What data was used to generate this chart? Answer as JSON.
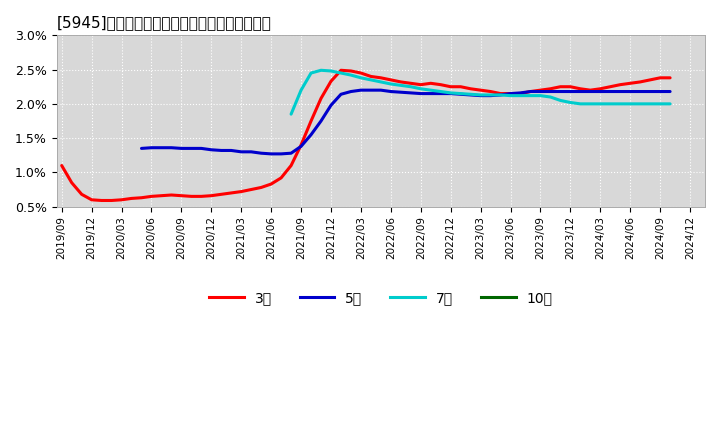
{
  "title": "[5945]　当期純利益マージンの標準偏差の推移",
  "ylim": [
    0.005,
    0.03
  ],
  "yticks": [
    0.005,
    0.01,
    0.015,
    0.02,
    0.025,
    0.03
  ],
  "ytick_labels": [
    "0.5%",
    "1.0%",
    "1.5%",
    "2.0%",
    "2.5%",
    "3.0%"
  ],
  "background_color": "#ffffff",
  "plot_bg_color": "#d8d8d8",
  "grid_color": "#ffffff",
  "series": {
    "3year": {
      "color": "#ff0000",
      "label": "3年",
      "x": [
        0,
        1,
        2,
        3,
        4,
        5,
        6,
        7,
        8,
        9,
        10,
        11,
        12,
        13,
        14,
        15,
        16,
        17,
        18,
        19,
        20,
        21,
        22,
        23,
        24,
        25,
        26,
        27,
        28,
        29,
        30,
        31,
        32,
        33,
        34,
        35,
        36,
        37,
        38,
        39,
        40,
        41,
        42,
        43,
        44,
        45,
        46,
        47,
        48,
        49,
        50,
        51,
        52,
        53,
        54,
        55,
        56,
        57,
        58,
        59,
        60,
        61
      ],
      "y": [
        0.011,
        0.0085,
        0.0068,
        0.006,
        0.0059,
        0.0059,
        0.006,
        0.0062,
        0.0063,
        0.0065,
        0.0066,
        0.0067,
        0.0066,
        0.0065,
        0.0065,
        0.0066,
        0.0068,
        0.007,
        0.0072,
        0.0075,
        0.0078,
        0.0083,
        0.0092,
        0.011,
        0.014,
        0.0175,
        0.0208,
        0.0233,
        0.0249,
        0.0248,
        0.0245,
        0.024,
        0.0238,
        0.0235,
        0.0232,
        0.023,
        0.0228,
        0.023,
        0.0228,
        0.0225,
        0.0225,
        0.0222,
        0.022,
        0.0218,
        0.0215,
        0.0215,
        0.0215,
        0.0218,
        0.022,
        0.0222,
        0.0225,
        0.0225,
        0.0222,
        0.022,
        0.0222,
        0.0225,
        0.0228,
        0.023,
        0.0232,
        0.0235,
        0.0238,
        0.0238
      ]
    },
    "5year": {
      "color": "#0000cc",
      "label": "5年",
      "x": [
        8,
        9,
        10,
        11,
        12,
        13,
        14,
        15,
        16,
        17,
        18,
        19,
        20,
        21,
        22,
        23,
        24,
        25,
        26,
        27,
        28,
        29,
        30,
        31,
        32,
        33,
        34,
        35,
        36,
        37,
        38,
        39,
        40,
        41,
        42,
        43,
        44,
        45,
        46,
        47,
        48,
        49,
        50,
        51,
        52,
        53,
        54,
        55,
        56,
        57,
        58,
        59,
        60,
        61
      ],
      "y": [
        0.0135,
        0.0136,
        0.0136,
        0.0136,
        0.0135,
        0.0135,
        0.0135,
        0.0133,
        0.0132,
        0.0132,
        0.013,
        0.013,
        0.0128,
        0.0127,
        0.0127,
        0.0128,
        0.0138,
        0.0155,
        0.0175,
        0.0198,
        0.0214,
        0.0218,
        0.022,
        0.022,
        0.022,
        0.0218,
        0.0217,
        0.0216,
        0.0215,
        0.0215,
        0.0215,
        0.0215,
        0.0214,
        0.0213,
        0.0212,
        0.0212,
        0.0213,
        0.0215,
        0.0216,
        0.0218,
        0.0218,
        0.0218,
        0.0218,
        0.0218,
        0.0218,
        0.0218,
        0.0218,
        0.0218,
        0.0218,
        0.0218,
        0.0218,
        0.0218,
        0.0218,
        0.0218
      ]
    },
    "7year": {
      "color": "#00cccc",
      "label": "7年",
      "x": [
        23,
        24,
        25,
        26,
        27,
        28,
        29,
        30,
        31,
        32,
        33,
        34,
        35,
        36,
        37,
        38,
        39,
        40,
        41,
        42,
        43,
        44,
        45,
        46,
        47,
        48,
        49,
        50,
        51,
        52,
        53,
        54,
        55,
        56,
        57,
        58,
        59,
        60,
        61
      ],
      "y": [
        0.0185,
        0.022,
        0.0245,
        0.0249,
        0.0248,
        0.0245,
        0.0242,
        0.0238,
        0.0235,
        0.0232,
        0.0229,
        0.0227,
        0.0225,
        0.0222,
        0.022,
        0.0218,
        0.0216,
        0.0215,
        0.0214,
        0.0213,
        0.0213,
        0.0213,
        0.0212,
        0.0212,
        0.0212,
        0.0212,
        0.021,
        0.0205,
        0.0202,
        0.02,
        0.02,
        0.02,
        0.02,
        0.02,
        0.02,
        0.02,
        0.02,
        0.02,
        0.02
      ]
    },
    "10year": {
      "color": "#006600",
      "label": "10年",
      "x": [],
      "y": []
    }
  },
  "xtick_positions": [
    0,
    3,
    6,
    9,
    12,
    15,
    18,
    21,
    24,
    27,
    30,
    33,
    36,
    39,
    42,
    45,
    48,
    51,
    54,
    57,
    60,
    63
  ],
  "xtick_labels": [
    "2019/09",
    "2019/12",
    "2020/03",
    "2020/06",
    "2020/09",
    "2020/12",
    "2021/03",
    "2021/06",
    "2021/09",
    "2021/12",
    "2022/03",
    "2022/06",
    "2022/09",
    "2022/12",
    "2023/03",
    "2023/06",
    "2023/09",
    "2023/12",
    "2024/03",
    "2024/06",
    "2024/09",
    "2024/12"
  ]
}
